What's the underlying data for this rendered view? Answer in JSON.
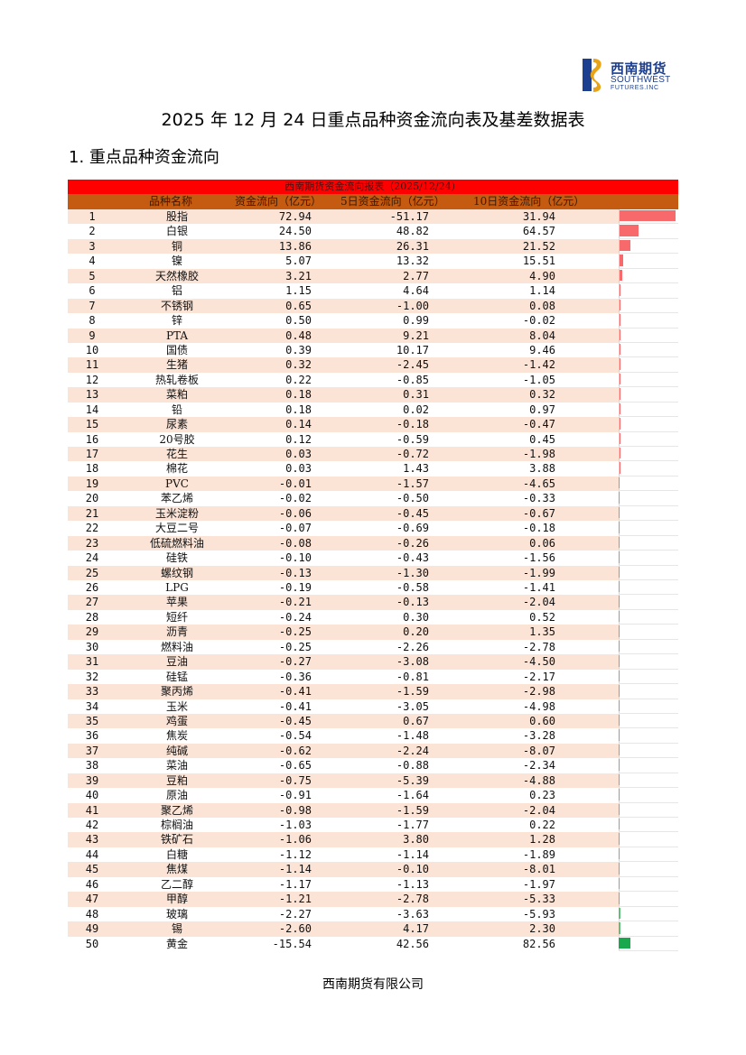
{
  "logo": {
    "cn": "西南期货",
    "en1": "SOUTHWEST",
    "en2": "FUTURES.INC"
  },
  "document": {
    "title": "2025 年 12 月 24 日重点品种资金流向表及基差数据表",
    "section_title": "1. 重点品种资金流向"
  },
  "table": {
    "title": "西南期货资金流向报表（2025/12/24）",
    "headers": {
      "name": "品种名称",
      "flow": "资金流向（亿元）",
      "flow5": "5日资金流向（亿元）",
      "flow10": "10日资金流向（亿元）"
    },
    "colors": {
      "positive_bar": "#f8696b",
      "negative_bar": "#63be7b",
      "title_bg": "#ff0000",
      "header_bg": "#c55a11",
      "odd_row_bg": "#fbe3d6"
    },
    "rows": [
      {
        "rank": "1",
        "name": "股指",
        "v1": "72.94",
        "v2": "-51.17",
        "v3": "31.94"
      },
      {
        "rank": "2",
        "name": "白银",
        "v1": "24.50",
        "v2": "48.82",
        "v3": "64.57"
      },
      {
        "rank": "3",
        "name": "铜",
        "v1": "13.86",
        "v2": "26.31",
        "v3": "21.52"
      },
      {
        "rank": "4",
        "name": "镍",
        "v1": "5.07",
        "v2": "13.32",
        "v3": "15.51"
      },
      {
        "rank": "5",
        "name": "天然橡胶",
        "v1": "3.21",
        "v2": "2.77",
        "v3": "4.90"
      },
      {
        "rank": "6",
        "name": "铝",
        "v1": "1.15",
        "v2": "4.64",
        "v3": "1.14"
      },
      {
        "rank": "7",
        "name": "不锈钢",
        "v1": "0.65",
        "v2": "-1.00",
        "v3": "0.08"
      },
      {
        "rank": "8",
        "name": "锌",
        "v1": "0.50",
        "v2": "0.99",
        "v3": "-0.02"
      },
      {
        "rank": "9",
        "name": "PTA",
        "v1": "0.48",
        "v2": "9.21",
        "v3": "8.04"
      },
      {
        "rank": "10",
        "name": "国债",
        "v1": "0.39",
        "v2": "10.17",
        "v3": "9.46"
      },
      {
        "rank": "11",
        "name": "生猪",
        "v1": "0.32",
        "v2": "-2.45",
        "v3": "-1.42"
      },
      {
        "rank": "12",
        "name": "热轧卷板",
        "v1": "0.22",
        "v2": "-0.85",
        "v3": "-1.05"
      },
      {
        "rank": "13",
        "name": "菜粕",
        "v1": "0.18",
        "v2": "0.31",
        "v3": "0.32"
      },
      {
        "rank": "14",
        "name": "铅",
        "v1": "0.18",
        "v2": "0.02",
        "v3": "0.97"
      },
      {
        "rank": "15",
        "name": "尿素",
        "v1": "0.14",
        "v2": "-0.18",
        "v3": "-0.47"
      },
      {
        "rank": "16",
        "name": "20号胶",
        "v1": "0.12",
        "v2": "-0.59",
        "v3": "0.45"
      },
      {
        "rank": "17",
        "name": "花生",
        "v1": "0.03",
        "v2": "-0.72",
        "v3": "-1.98"
      },
      {
        "rank": "18",
        "name": "棉花",
        "v1": "0.03",
        "v2": "1.43",
        "v3": "3.88"
      },
      {
        "rank": "19",
        "name": "PVC",
        "v1": "-0.01",
        "v2": "-1.57",
        "v3": "-4.65"
      },
      {
        "rank": "20",
        "name": "苯乙烯",
        "v1": "-0.02",
        "v2": "-0.50",
        "v3": "-0.33"
      },
      {
        "rank": "21",
        "name": "玉米淀粉",
        "v1": "-0.06",
        "v2": "-0.45",
        "v3": "-0.67"
      },
      {
        "rank": "22",
        "name": "大豆二号",
        "v1": "-0.07",
        "v2": "-0.69",
        "v3": "-0.18"
      },
      {
        "rank": "23",
        "name": "低硫燃料油",
        "v1": "-0.08",
        "v2": "-0.26",
        "v3": "0.06"
      },
      {
        "rank": "24",
        "name": "硅铁",
        "v1": "-0.10",
        "v2": "-0.43",
        "v3": "-1.56"
      },
      {
        "rank": "25",
        "name": "螺纹钢",
        "v1": "-0.13",
        "v2": "-1.30",
        "v3": "-1.99"
      },
      {
        "rank": "26",
        "name": "LPG",
        "v1": "-0.19",
        "v2": "-0.58",
        "v3": "-1.41"
      },
      {
        "rank": "27",
        "name": "苹果",
        "v1": "-0.21",
        "v2": "-0.13",
        "v3": "-2.04"
      },
      {
        "rank": "28",
        "name": "短纤",
        "v1": "-0.24",
        "v2": "0.30",
        "v3": "0.52"
      },
      {
        "rank": "29",
        "name": "沥青",
        "v1": "-0.25",
        "v2": "0.20",
        "v3": "1.35"
      },
      {
        "rank": "30",
        "name": "燃料油",
        "v1": "-0.25",
        "v2": "-2.26",
        "v3": "-2.78"
      },
      {
        "rank": "31",
        "name": "豆油",
        "v1": "-0.27",
        "v2": "-3.08",
        "v3": "-4.50"
      },
      {
        "rank": "32",
        "name": "硅锰",
        "v1": "-0.36",
        "v2": "-0.81",
        "v3": "-2.17"
      },
      {
        "rank": "33",
        "name": "聚丙烯",
        "v1": "-0.41",
        "v2": "-1.59",
        "v3": "-2.98"
      },
      {
        "rank": "34",
        "name": "玉米",
        "v1": "-0.41",
        "v2": "-3.05",
        "v3": "-4.98"
      },
      {
        "rank": "35",
        "name": "鸡蛋",
        "v1": "-0.45",
        "v2": "0.67",
        "v3": "0.60"
      },
      {
        "rank": "36",
        "name": "焦炭",
        "v1": "-0.54",
        "v2": "-1.48",
        "v3": "-3.28"
      },
      {
        "rank": "37",
        "name": "纯碱",
        "v1": "-0.62",
        "v2": "-2.24",
        "v3": "-8.07"
      },
      {
        "rank": "38",
        "name": "菜油",
        "v1": "-0.65",
        "v2": "-0.88",
        "v3": "-2.34"
      },
      {
        "rank": "39",
        "name": "豆粕",
        "v1": "-0.75",
        "v2": "-5.39",
        "v3": "-4.88"
      },
      {
        "rank": "40",
        "name": "原油",
        "v1": "-0.91",
        "v2": "-1.64",
        "v3": "0.23"
      },
      {
        "rank": "41",
        "name": "聚乙烯",
        "v1": "-0.98",
        "v2": "-1.59",
        "v3": "-2.04"
      },
      {
        "rank": "42",
        "name": "棕榈油",
        "v1": "-1.03",
        "v2": "-1.77",
        "v3": "0.22"
      },
      {
        "rank": "43",
        "name": "铁矿石",
        "v1": "-1.06",
        "v2": "3.80",
        "v3": "1.28"
      },
      {
        "rank": "44",
        "name": "白糖",
        "v1": "-1.12",
        "v2": "-1.14",
        "v3": "-1.89"
      },
      {
        "rank": "45",
        "name": "焦煤",
        "v1": "-1.14",
        "v2": "-0.10",
        "v3": "-8.01"
      },
      {
        "rank": "46",
        "name": "乙二醇",
        "v1": "-1.17",
        "v2": "-1.13",
        "v3": "-1.97"
      },
      {
        "rank": "47",
        "name": "甲醇",
        "v1": "-1.21",
        "v2": "-2.78",
        "v3": "-5.33"
      },
      {
        "rank": "48",
        "name": "玻璃",
        "v1": "-2.27",
        "v2": "-3.63",
        "v3": "-5.93"
      },
      {
        "rank": "49",
        "name": "锡",
        "v1": "-2.60",
        "v2": "4.17",
        "v3": "2.30"
      },
      {
        "rank": "50",
        "name": "黄金",
        "v1": "-15.54",
        "v2": "42.56",
        "v3": "82.56"
      }
    ]
  },
  "footer": {
    "company": "西南期货有限公司"
  }
}
